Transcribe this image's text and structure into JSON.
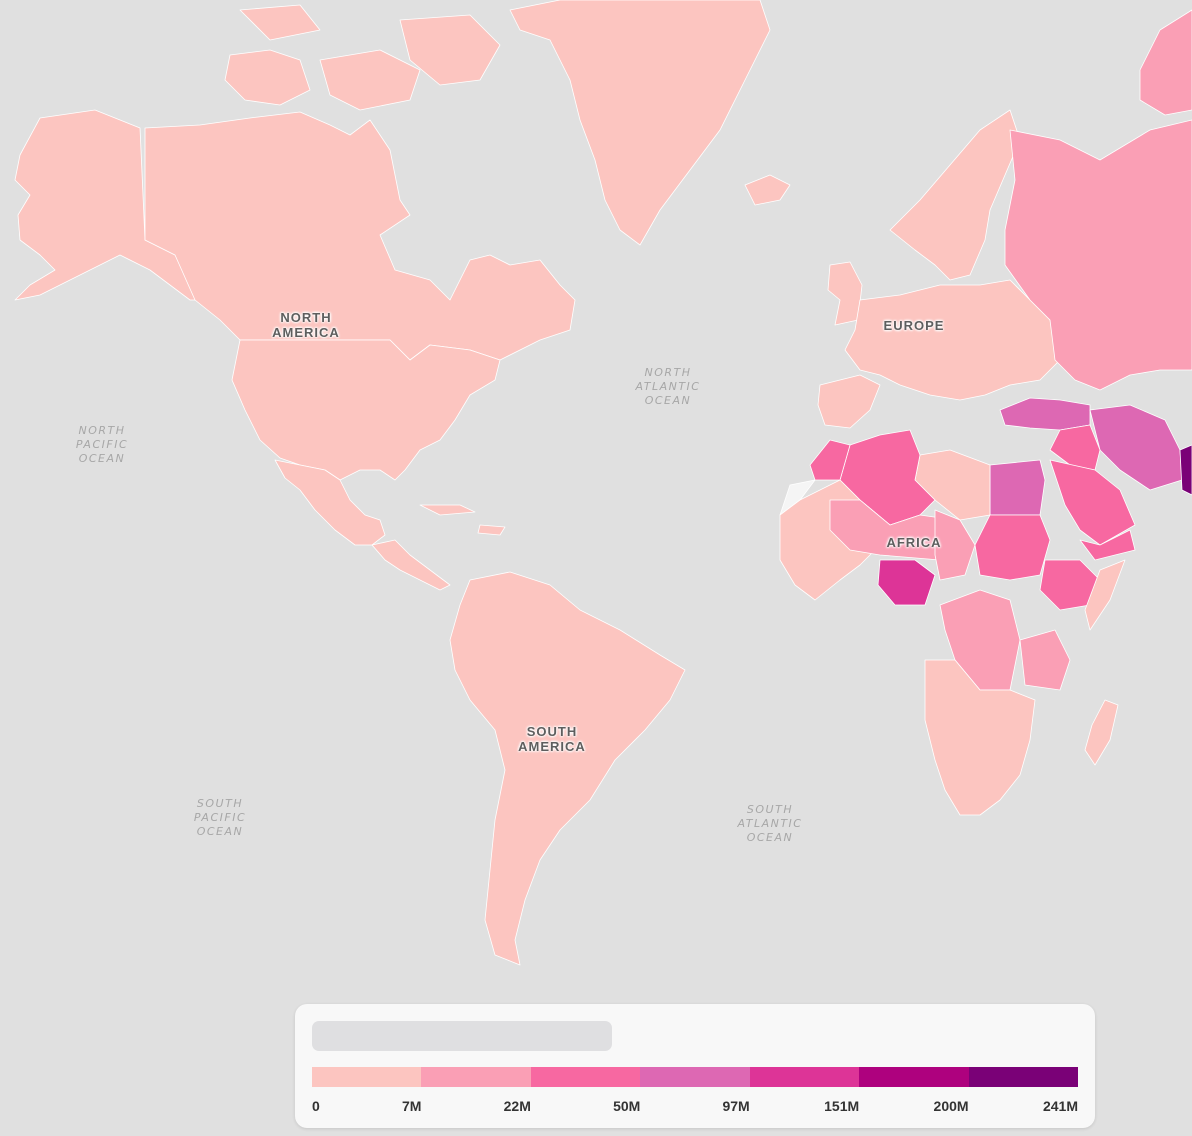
{
  "map": {
    "continent_labels": [
      {
        "id": "north-america",
        "text": "NORTH\nAMERICA"
      },
      {
        "id": "south-america",
        "text": "SOUTH\nAMERICA"
      },
      {
        "id": "europe",
        "text": "EUROPE"
      },
      {
        "id": "africa",
        "text": "AFRICA"
      }
    ],
    "ocean_labels": [
      {
        "id": "north-pacific",
        "text": "NORTH\nPACIFIC\nOCEAN"
      },
      {
        "id": "south-pacific",
        "text": "SOUTH\nPACIFIC\nOCEAN"
      },
      {
        "id": "north-atlantic",
        "text": "NORTH\nATLANTIC\nOCEAN"
      },
      {
        "id": "south-atlantic",
        "text": "SOUTH\nATLANTIC\nOCEAN"
      }
    ],
    "colors": {
      "ocean": "#e0e0e0",
      "no_data": "#f5f5f5"
    }
  },
  "legend": {
    "title": "",
    "colors": [
      "#fcc5c0",
      "#fa9fb5",
      "#f768a1",
      "#dd68b3",
      "#dd3497",
      "#ae017e",
      "#7a0177"
    ],
    "ticks": [
      "0",
      "7M",
      "22M",
      "50M",
      "97M",
      "151M",
      "200M",
      "241M"
    ],
    "thresholds": [
      0,
      7000000,
      22000000,
      50000000,
      97000000,
      151000000,
      200000000,
      241000000
    ]
  }
}
